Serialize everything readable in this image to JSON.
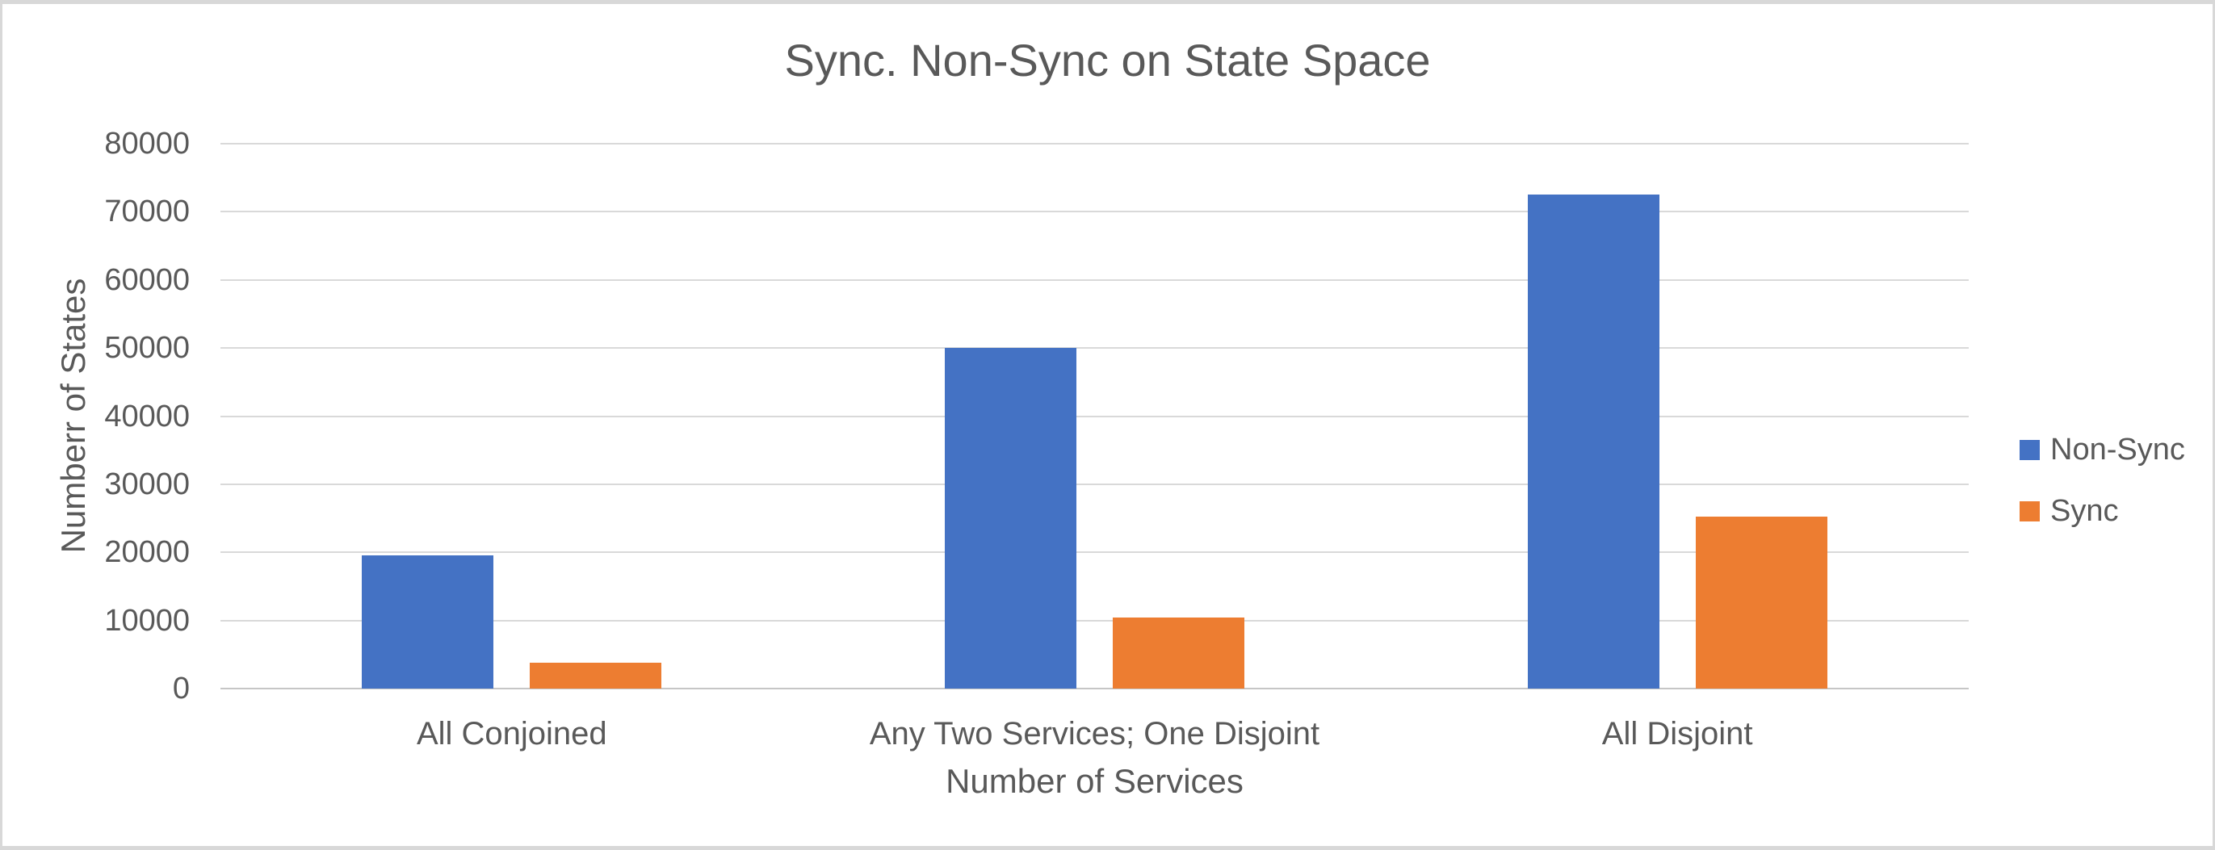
{
  "window": {
    "background": "#FFFFFF",
    "frame_border_color": "#D8D8D8"
  },
  "chart_data": {
    "type": "bar",
    "title": "Sync. Non-Sync on State Space",
    "xlabel": "Number of Services",
    "ylabel": "Numberr of States",
    "categories": [
      "All Conjoined",
      "Any Two Services; One Disjoint",
      "All Disjoint"
    ],
    "series": [
      {
        "name": "Non-Sync",
        "color": "#4472C4",
        "values": [
          19500,
          50000,
          72500
        ]
      },
      {
        "name": "Sync",
        "color": "#ED7D31",
        "values": [
          3800,
          10400,
          25200
        ]
      }
    ],
    "ylim": [
      0,
      80000
    ],
    "ytick_step": 10000,
    "ytick_labels": [
      "0",
      "10000",
      "20000",
      "30000",
      "40000",
      "50000",
      "60000",
      "70000",
      "80000"
    ],
    "grid": "horizontal-gridlines-on",
    "legend_position": "right",
    "text_color": "#595959",
    "gridline_color": "#D9D9D9"
  }
}
